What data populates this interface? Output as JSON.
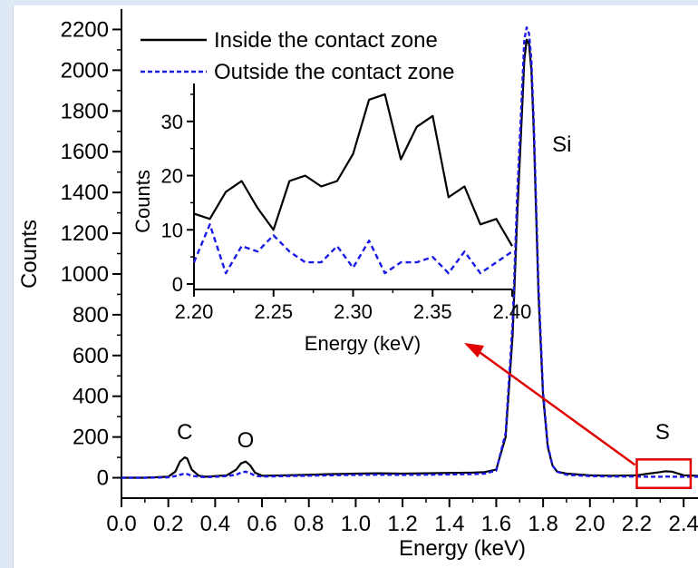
{
  "chart_data": [
    {
      "type": "line",
      "xlabel": "Energy (keV)",
      "ylabel": "Counts",
      "xlim": [
        0.0,
        2.5
      ],
      "ylim": [
        -100,
        2300
      ],
      "x_ticks": [
        "0.0",
        "0.2",
        "0.4",
        "0.6",
        "0.8",
        "1.0",
        "1.2",
        "1.4",
        "1.6",
        "1.8",
        "2.0",
        "2.2",
        "2.4"
      ],
      "y_ticks": [
        "0",
        "200",
        "400",
        "600",
        "800",
        "1000",
        "1200",
        "1400",
        "1600",
        "1800",
        "2000",
        "2200"
      ],
      "legend": {
        "position": "top-left",
        "entries": [
          "Inside the contact zone",
          "Outside the contact zone"
        ]
      },
      "annotations": [
        {
          "text": "C",
          "x": 0.27,
          "y": 190
        },
        {
          "text": "O",
          "x": 0.53,
          "y": 150
        },
        {
          "text": "Si",
          "x": 1.88,
          "y": 1600
        },
        {
          "text": "S",
          "x": 2.31,
          "y": 190
        }
      ],
      "highlight_box": {
        "x": [
          2.2,
          2.43
        ],
        "y": [
          -50,
          90
        ]
      },
      "series": [
        {
          "name": "Inside the contact zone",
          "color": "#000000",
          "style": "solid",
          "x": [
            0.0,
            0.1,
            0.2,
            0.23,
            0.25,
            0.27,
            0.28,
            0.3,
            0.33,
            0.36,
            0.4,
            0.45,
            0.49,
            0.51,
            0.53,
            0.55,
            0.57,
            0.6,
            0.7,
            0.8,
            0.9,
            1.0,
            1.1,
            1.2,
            1.3,
            1.4,
            1.5,
            1.55,
            1.6,
            1.64,
            1.67,
            1.69,
            1.71,
            1.72,
            1.73,
            1.74,
            1.75,
            1.76,
            1.77,
            1.78,
            1.8,
            1.82,
            1.84,
            1.86,
            1.9,
            2.0,
            2.1,
            2.2,
            2.25,
            2.3,
            2.32,
            2.35,
            2.4,
            2.45,
            2.5
          ],
          "y": [
            0,
            0,
            5,
            30,
            80,
            100,
            95,
            40,
            10,
            5,
            8,
            12,
            40,
            70,
            80,
            60,
            25,
            10,
            12,
            15,
            18,
            20,
            22,
            20,
            22,
            24,
            25,
            28,
            40,
            200,
            700,
            1300,
            1800,
            2050,
            2150,
            2130,
            2000,
            1700,
            1300,
            900,
            400,
            150,
            60,
            30,
            20,
            12,
            10,
            12,
            20,
            28,
            32,
            30,
            12,
            10,
            10
          ]
        },
        {
          "name": "Outside the contact zone",
          "color": "#1a1ae6",
          "style": "dashed",
          "x": [
            0.0,
            0.1,
            0.2,
            0.23,
            0.25,
            0.27,
            0.28,
            0.3,
            0.33,
            0.36,
            0.4,
            0.45,
            0.49,
            0.51,
            0.53,
            0.55,
            0.57,
            0.6,
            0.7,
            0.8,
            0.9,
            1.0,
            1.1,
            1.2,
            1.3,
            1.4,
            1.5,
            1.55,
            1.6,
            1.64,
            1.67,
            1.69,
            1.71,
            1.72,
            1.73,
            1.74,
            1.75,
            1.76,
            1.77,
            1.78,
            1.8,
            1.82,
            1.84,
            1.86,
            1.9,
            2.0,
            2.1,
            2.2,
            2.25,
            2.3,
            2.32,
            2.35,
            2.4,
            2.45,
            2.5
          ],
          "y": [
            0,
            0,
            2,
            8,
            15,
            20,
            18,
            10,
            5,
            3,
            5,
            8,
            15,
            25,
            30,
            22,
            10,
            6,
            8,
            10,
            12,
            14,
            15,
            14,
            15,
            16,
            18,
            20,
            35,
            220,
            760,
            1400,
            1900,
            2150,
            2210,
            2180,
            2050,
            1750,
            1350,
            950,
            420,
            160,
            60,
            30,
            15,
            8,
            6,
            6,
            5,
            5,
            6,
            5,
            5,
            5,
            5
          ]
        }
      ]
    },
    {
      "type": "line",
      "xlabel": "Energy (keV)",
      "ylabel": "Counts",
      "xlim": [
        2.2,
        2.4
      ],
      "ylim": [
        -1,
        37
      ],
      "x_ticks": [
        "2.20",
        "2.25",
        "2.30",
        "2.35",
        "2.40"
      ],
      "y_ticks": [
        "0",
        "10",
        "20",
        "30"
      ],
      "series": [
        {
          "name": "Inside the contact zone",
          "color": "#000000",
          "style": "solid",
          "x": [
            2.2,
            2.21,
            2.22,
            2.23,
            2.24,
            2.25,
            2.26,
            2.27,
            2.28,
            2.29,
            2.3,
            2.31,
            2.32,
            2.33,
            2.34,
            2.35,
            2.36,
            2.37,
            2.38,
            2.39,
            2.4
          ],
          "y": [
            13,
            12,
            17,
            19,
            14,
            10,
            19,
            20,
            18,
            19,
            24,
            34,
            35,
            23,
            29,
            31,
            16,
            18,
            11,
            12,
            7
          ]
        },
        {
          "name": "Outside the contact zone",
          "color": "#1a1ae6",
          "style": "dashed",
          "x": [
            2.2,
            2.21,
            2.22,
            2.23,
            2.24,
            2.25,
            2.26,
            2.27,
            2.28,
            2.29,
            2.3,
            2.31,
            2.32,
            2.33,
            2.34,
            2.35,
            2.36,
            2.37,
            2.38,
            2.39,
            2.4
          ],
          "y": [
            4,
            11,
            2,
            7,
            6,
            9,
            6,
            4,
            4,
            7,
            3,
            8,
            2,
            4,
            4,
            5,
            2,
            6,
            2,
            4,
            6
          ]
        }
      ]
    }
  ]
}
